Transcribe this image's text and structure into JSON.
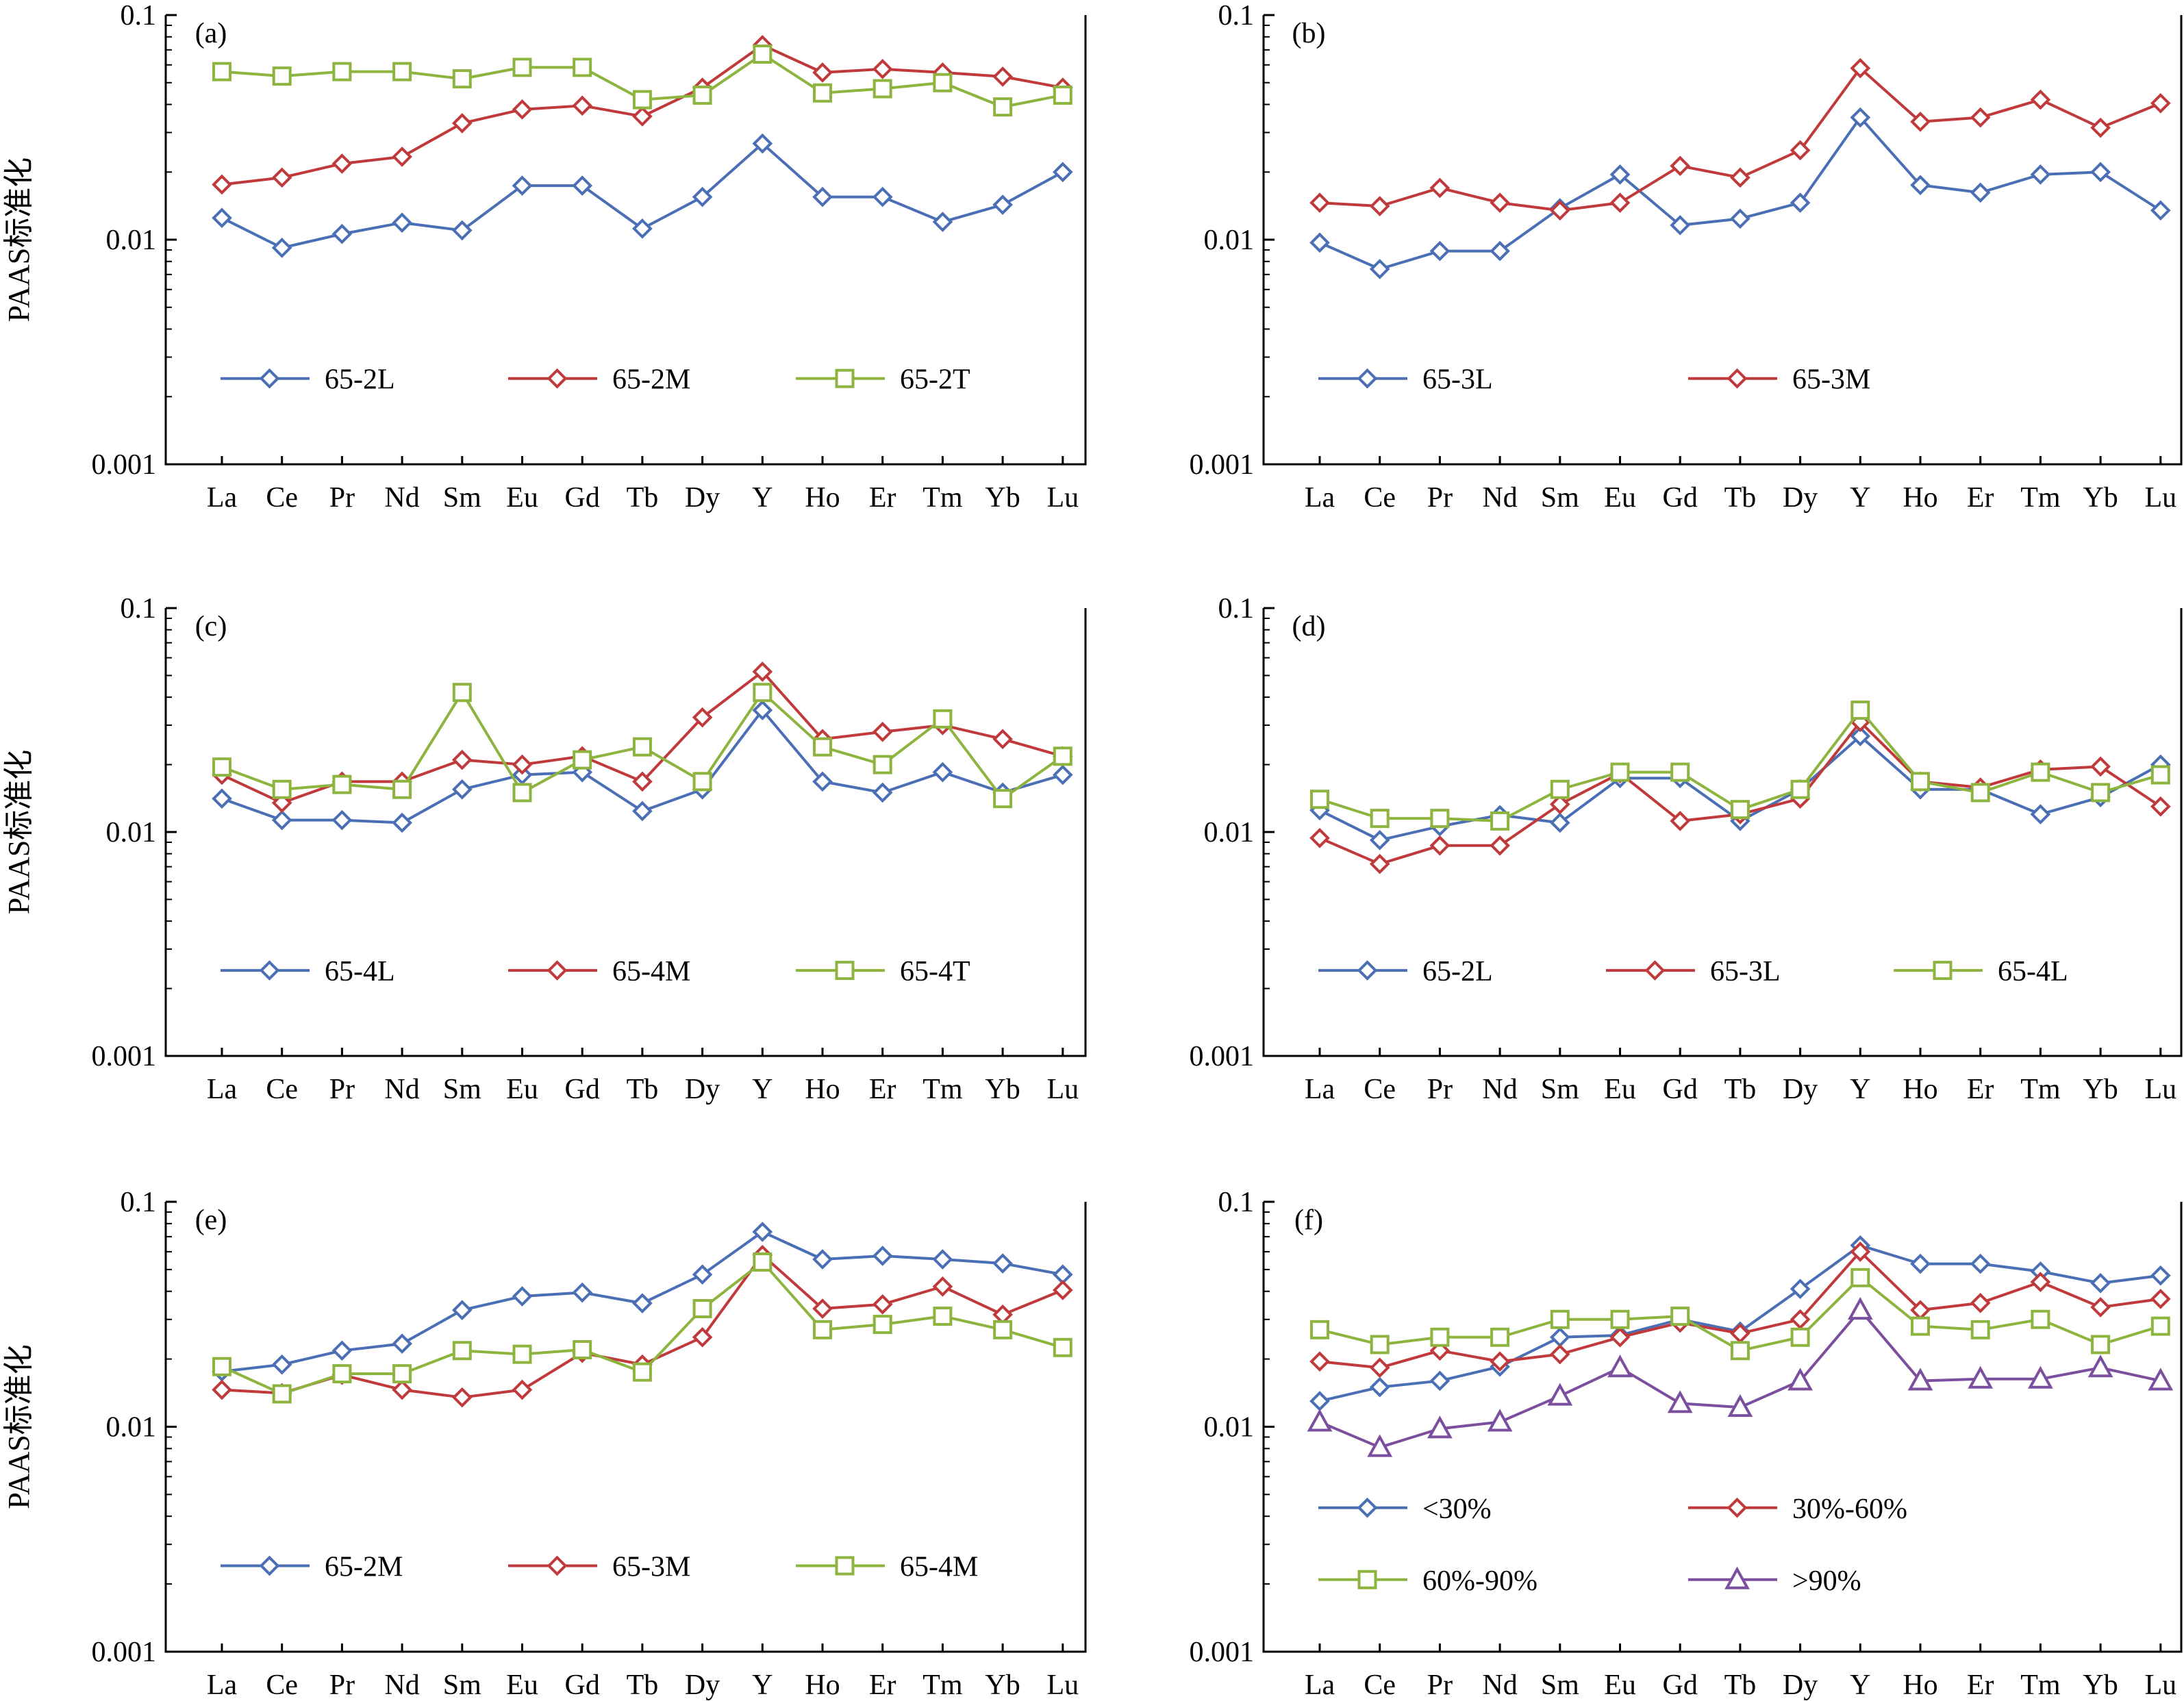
{
  "figure": {
    "ylabel": "PAAS标准化"
  },
  "series_styles": {
    "blue": {
      "color": "#4a6fb5",
      "marker": "diamond"
    },
    "red": {
      "color": "#c0393b",
      "marker": "diamond"
    },
    "green": {
      "color": "#8db43f",
      "marker": "square"
    },
    "purple": {
      "color": "#7b4f9d",
      "marker": "triangle"
    }
  },
  "chart_data": [
    {
      "type": "line",
      "panel": "(a)",
      "categories": [
        "La",
        "Ce",
        "Pr",
        "Nd",
        "Sm",
        "Eu",
        "Gd",
        "Tb",
        "Dy",
        "Y",
        "Ho",
        "Er",
        "Tm",
        "Yb",
        "Lu"
      ],
      "yscale": "log",
      "ylim": [
        0.001,
        0.1
      ],
      "yticks": [
        "0.1",
        "0.01",
        "0.001"
      ],
      "series": [
        {
          "name": "65-2L",
          "style": "blue",
          "values": [
            0.0125,
            0.0092,
            0.0106,
            0.0119,
            0.011,
            0.0174,
            0.0174,
            0.0112,
            0.0155,
            0.0268,
            0.0155,
            0.0155,
            0.012,
            0.0143,
            0.02
          ]
        },
        {
          "name": "65-2M",
          "style": "red",
          "values": [
            0.0176,
            0.0189,
            0.0218,
            0.0234,
            0.033,
            0.038,
            0.0395,
            0.0354,
            0.0475,
            0.0735,
            0.0555,
            0.0575,
            0.0555,
            0.0532,
            0.0475
          ]
        },
        {
          "name": "65-2T",
          "style": "green",
          "values": [
            0.056,
            0.0535,
            0.056,
            0.056,
            0.052,
            0.0585,
            0.0585,
            0.042,
            0.044,
            0.067,
            0.045,
            0.047,
            0.05,
            0.039,
            0.044
          ]
        }
      ]
    },
    {
      "type": "line",
      "panel": "(b)",
      "categories": [
        "La",
        "Ce",
        "Pr",
        "Nd",
        "Sm",
        "Eu",
        "Gd",
        "Tb",
        "Dy",
        "Y",
        "Ho",
        "Er",
        "Tm",
        "Yb",
        "Lu"
      ],
      "yscale": "log",
      "ylim": [
        0.001,
        0.1
      ],
      "yticks": [
        "0.1",
        "0.01",
        "0.001"
      ],
      "series": [
        {
          "name": "65-3L",
          "style": "blue",
          "values": [
            0.0097,
            0.0074,
            0.0089,
            0.0089,
            0.0138,
            0.0195,
            0.0116,
            0.0124,
            0.0146,
            0.035,
            0.0175,
            0.0162,
            0.0195,
            0.02,
            0.0135
          ]
        },
        {
          "name": "65-3M",
          "style": "red",
          "values": [
            0.0146,
            0.0141,
            0.017,
            0.0146,
            0.0135,
            0.0146,
            0.0213,
            0.0189,
            0.025,
            0.058,
            0.0335,
            0.035,
            0.042,
            0.0315,
            0.0405
          ]
        }
      ]
    },
    {
      "type": "line",
      "panel": "(c)",
      "categories": [
        "La",
        "Ce",
        "Pr",
        "Nd",
        "Sm",
        "Eu",
        "Gd",
        "Tb",
        "Dy",
        "Y",
        "Ho",
        "Er",
        "Tm",
        "Yb",
        "Lu"
      ],
      "yscale": "log",
      "ylim": [
        0.001,
        0.1
      ],
      "yticks": [
        "0.1",
        "0.01",
        "0.001"
      ],
      "series": [
        {
          "name": "65-4L",
          "style": "blue",
          "values": [
            0.0141,
            0.0113,
            0.0113,
            0.011,
            0.0155,
            0.018,
            0.0185,
            0.0124,
            0.0155,
            0.035,
            0.0168,
            0.015,
            0.0185,
            0.015,
            0.018
          ]
        },
        {
          "name": "65-4M",
          "style": "red",
          "values": [
            0.018,
            0.0135,
            0.0168,
            0.0168,
            0.021,
            0.02,
            0.0218,
            0.0168,
            0.0325,
            0.052,
            0.026,
            0.028,
            0.03,
            0.026,
            0.0218
          ]
        },
        {
          "name": "65-4T",
          "style": "green",
          "values": [
            0.0195,
            0.0155,
            0.0163,
            0.0155,
            0.042,
            0.015,
            0.021,
            0.024,
            0.0168,
            0.042,
            0.024,
            0.02,
            0.032,
            0.0141,
            0.0218
          ]
        }
      ]
    },
    {
      "type": "line",
      "panel": "(d)",
      "categories": [
        "La",
        "Ce",
        "Pr",
        "Nd",
        "Sm",
        "Eu",
        "Gd",
        "Tb",
        "Dy",
        "Y",
        "Ho",
        "Er",
        "Tm",
        "Yb",
        "Lu"
      ],
      "yscale": "log",
      "ylim": [
        0.001,
        0.1
      ],
      "yticks": [
        "0.1",
        "0.01",
        "0.001"
      ],
      "series": [
        {
          "name": "65-2L",
          "style": "blue",
          "values": [
            0.0125,
            0.0092,
            0.0106,
            0.0119,
            0.011,
            0.0174,
            0.0174,
            0.0112,
            0.0155,
            0.0268,
            0.0155,
            0.0155,
            0.012,
            0.0143,
            0.02
          ]
        },
        {
          "name": "65-3L",
          "style": "red",
          "values": [
            0.0094,
            0.0072,
            0.0087,
            0.0087,
            0.0133,
            0.0183,
            0.0112,
            0.012,
            0.0141,
            0.031,
            0.0168,
            0.0158,
            0.019,
            0.0196,
            0.013
          ]
        },
        {
          "name": "65-4L",
          "style": "green",
          "values": [
            0.014,
            0.0115,
            0.0115,
            0.0112,
            0.0155,
            0.0185,
            0.0185,
            0.0126,
            0.0155,
            0.035,
            0.0168,
            0.015,
            0.0185,
            0.015,
            0.018
          ]
        }
      ]
    },
    {
      "type": "line",
      "panel": "(e)",
      "categories": [
        "La",
        "Ce",
        "Pr",
        "Nd",
        "Sm",
        "Eu",
        "Gd",
        "Tb",
        "Dy",
        "Y",
        "Ho",
        "Er",
        "Tm",
        "Yb",
        "Lu"
      ],
      "yscale": "log",
      "ylim": [
        0.001,
        0.1
      ],
      "yticks": [
        "0.1",
        "0.01",
        "0.001"
      ],
      "series": [
        {
          "name": "65-2M",
          "style": "blue",
          "values": [
            0.0176,
            0.0189,
            0.0218,
            0.0234,
            0.033,
            0.038,
            0.0395,
            0.0354,
            0.0475,
            0.0735,
            0.0555,
            0.0575,
            0.0555,
            0.0532,
            0.0475
          ]
        },
        {
          "name": "65-3M",
          "style": "red",
          "values": [
            0.0146,
            0.0141,
            0.017,
            0.0146,
            0.0135,
            0.0146,
            0.0213,
            0.0189,
            0.025,
            0.058,
            0.0335,
            0.035,
            0.042,
            0.0315,
            0.0405
          ]
        },
        {
          "name": "65-4M",
          "style": "green",
          "values": [
            0.0185,
            0.014,
            0.0172,
            0.0172,
            0.0218,
            0.021,
            0.022,
            0.0175,
            0.0335,
            0.054,
            0.027,
            0.0285,
            0.031,
            0.027,
            0.0225
          ]
        }
      ]
    },
    {
      "type": "line",
      "panel": "(f)",
      "categories": [
        "La",
        "Ce",
        "Pr",
        "Nd",
        "Sm",
        "Eu",
        "Gd",
        "Tb",
        "Dy",
        "Y",
        "Ho",
        "Er",
        "Tm",
        "Yb",
        "Lu"
      ],
      "yscale": "log",
      "ylim": [
        0.001,
        0.1
      ],
      "yticks": [
        "0.1",
        "0.01",
        "0.001"
      ],
      "series": [
        {
          "name": "<30%",
          "style": "blue",
          "values": [
            0.013,
            0.015,
            0.016,
            0.0185,
            0.025,
            0.0255,
            0.03,
            0.0265,
            0.041,
            0.064,
            0.053,
            0.053,
            0.049,
            0.0435,
            0.047
          ]
        },
        {
          "name": "30%-60%",
          "style": "red",
          "values": [
            0.0195,
            0.0183,
            0.0218,
            0.0195,
            0.021,
            0.025,
            0.029,
            0.026,
            0.03,
            0.06,
            0.033,
            0.0355,
            0.044,
            0.034,
            0.037
          ]
        },
        {
          "name": "60%-90%",
          "style": "green",
          "values": [
            0.027,
            0.0232,
            0.025,
            0.025,
            0.03,
            0.03,
            0.031,
            0.0218,
            0.025,
            0.046,
            0.028,
            0.027,
            0.03,
            0.0232,
            0.028
          ]
        },
        {
          "name": ">90%",
          "style": "purple",
          "values": [
            0.0105,
            0.0081,
            0.0098,
            0.0105,
            0.0137,
            0.0183,
            0.0127,
            0.0122,
            0.016,
            0.033,
            0.016,
            0.0163,
            0.0163,
            0.0183,
            0.016
          ]
        }
      ]
    }
  ]
}
